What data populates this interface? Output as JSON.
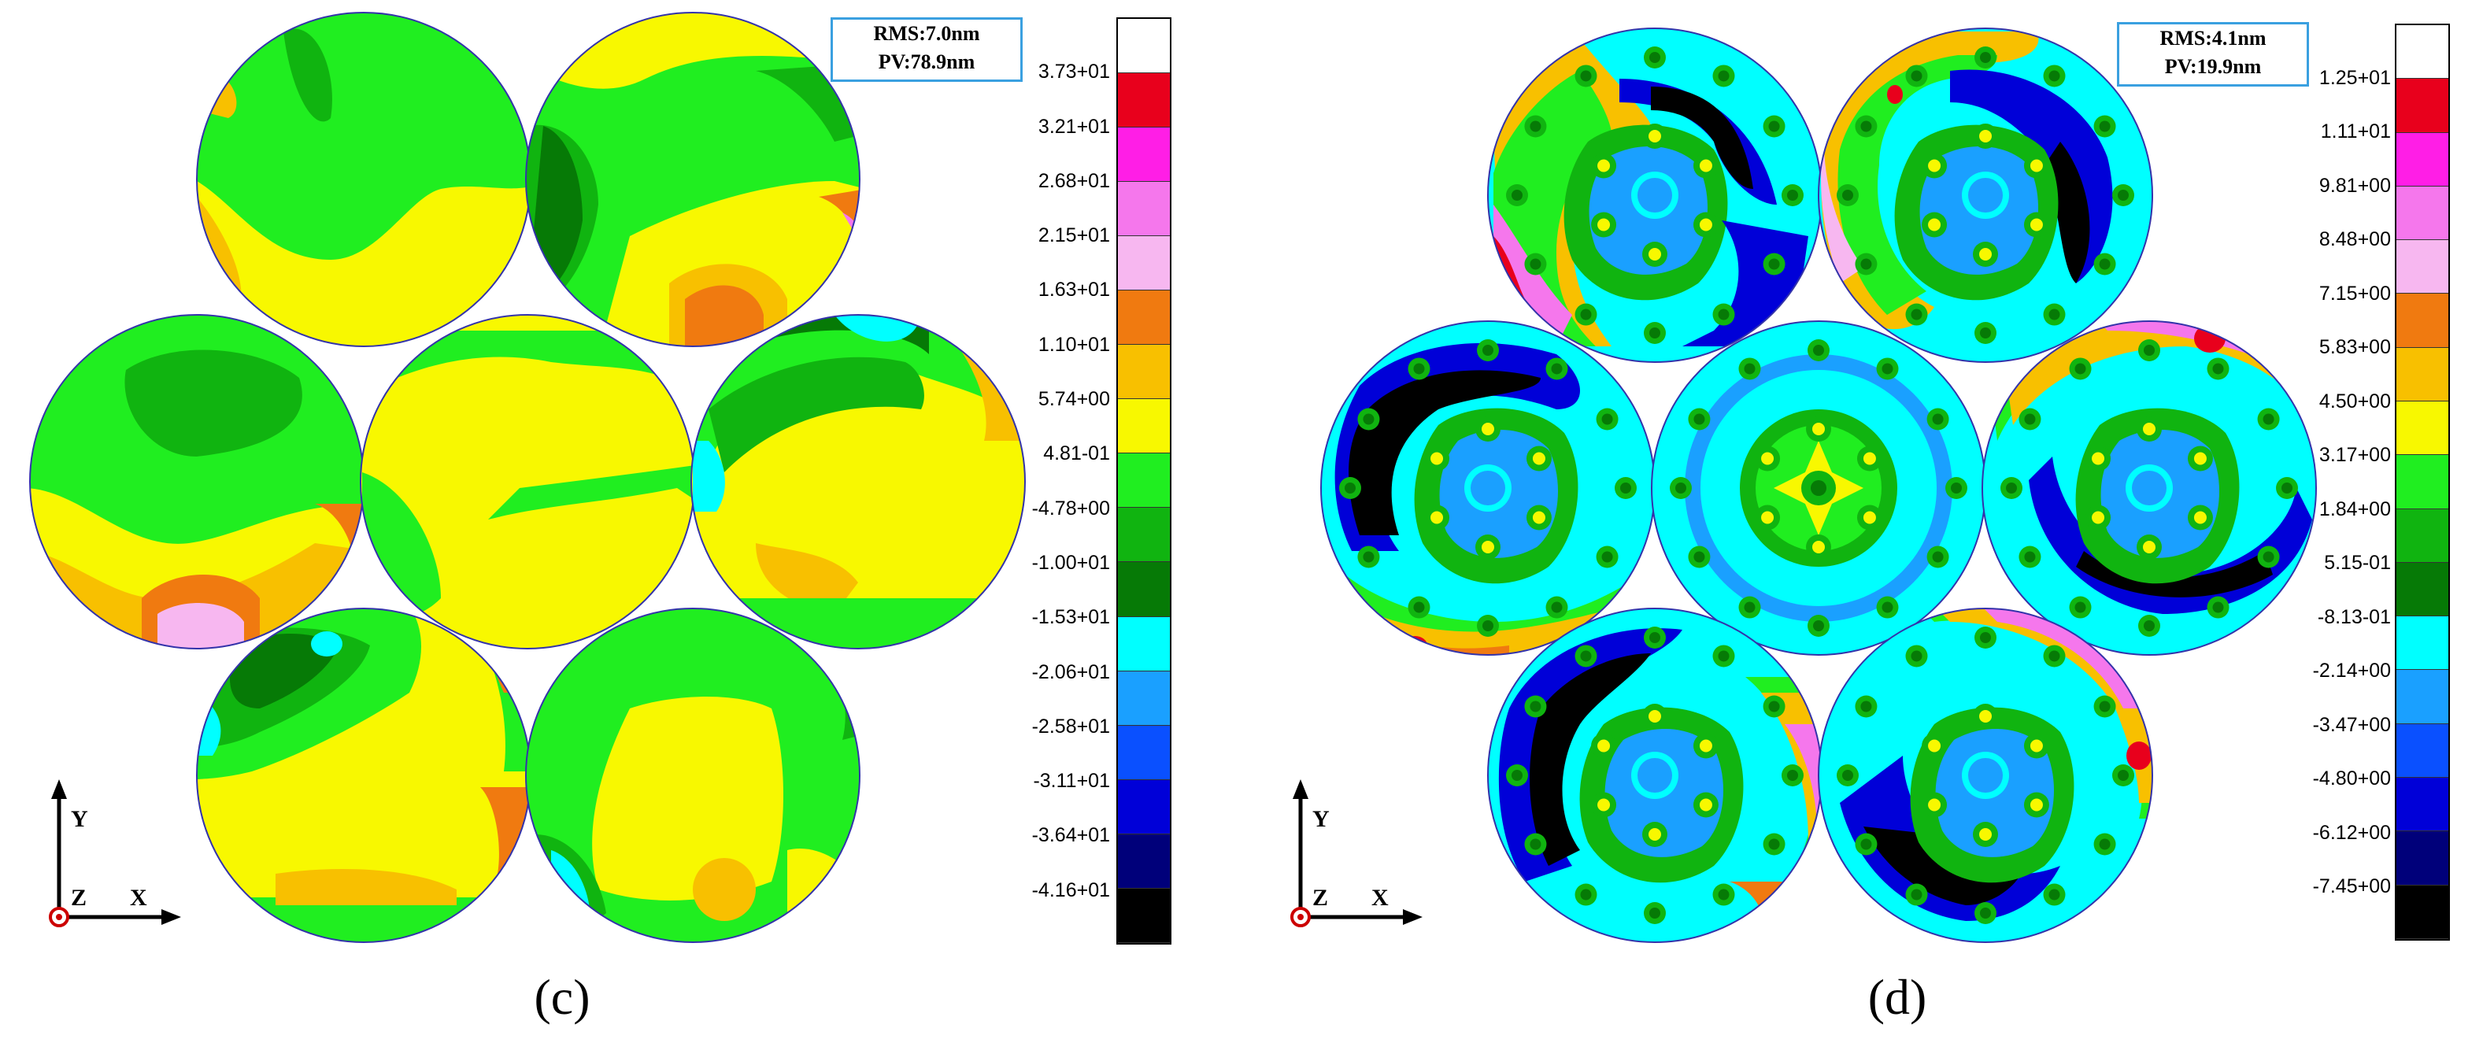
{
  "panels": [
    {
      "id": "c",
      "caption": "(c)",
      "stats": {
        "rms": "RMS:7.0nm",
        "pv": "PV:78.9nm"
      },
      "axes": {
        "x": "X",
        "y": "Y",
        "z": "Z"
      },
      "colorbar": {
        "colors": [
          "#ffffff",
          "#e8001c",
          "#ff1ee6",
          "#f577ec",
          "#f7b7f0",
          "#f07a10",
          "#f8c000",
          "#f8f800",
          "#20ee20",
          "#10b410",
          "#067a06",
          "#00ffff",
          "#1aa0ff",
          "#0a50ff",
          "#0000d8",
          "#00007a",
          "#000000"
        ],
        "labels": [
          "3.73+01",
          "3.21+01",
          "2.68+01",
          "2.15+01",
          "1.63+01",
          "1.10+01",
          "5.74+00",
          "4.81-01",
          "-4.78+00",
          "-1.00+01",
          "-1.53+01",
          "-2.06+01",
          "-2.58+01",
          "-3.11+01",
          "-3.64+01",
          "-4.16+01"
        ]
      }
    },
    {
      "id": "d",
      "caption": "(d)",
      "stats": {
        "rms": "RMS:4.1nm",
        "pv": "PV:19.9nm"
      },
      "axes": {
        "x": "X",
        "y": "Y",
        "z": "Z"
      },
      "colorbar": {
        "colors": [
          "#ffffff",
          "#e8001c",
          "#ff1ee6",
          "#f577ec",
          "#f7b7f0",
          "#f07a10",
          "#f8c000",
          "#f8f800",
          "#20ee20",
          "#10b410",
          "#067a06",
          "#00ffff",
          "#1aa0ff",
          "#0a50ff",
          "#0000d8",
          "#00007a",
          "#000000"
        ],
        "labels": [
          "1.25+01",
          "1.11+01",
          "9.81+00",
          "8.48+00",
          "7.15+00",
          "5.83+00",
          "4.50+00",
          "3.17+00",
          "1.84+00",
          "5.15-01",
          "-8.13-01",
          "-2.14+00",
          "-3.47+00",
          "-4.80+00",
          "-6.12+00",
          "-7.45+00"
        ]
      }
    }
  ]
}
